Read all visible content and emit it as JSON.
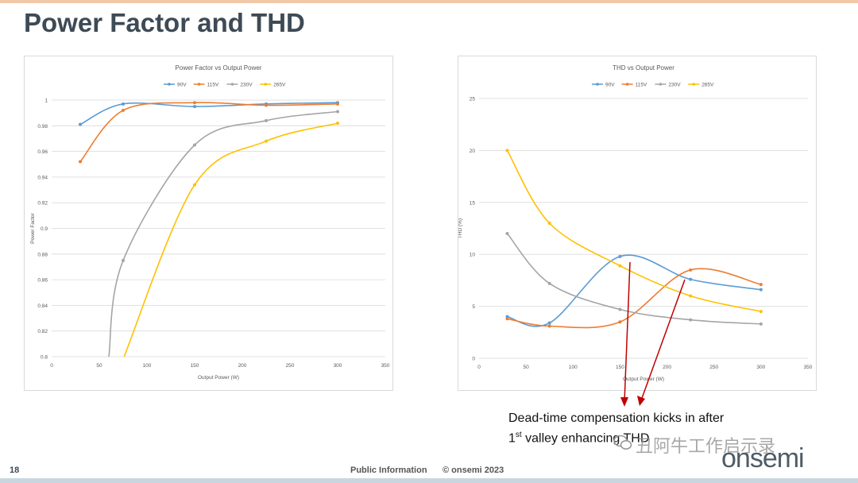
{
  "slide": {
    "title": "Power Factor and THD",
    "page_number": "18",
    "footer_info": "Public Information",
    "footer_copyright": "© onsemi 2023",
    "logo": "onsemi",
    "watermark": "丑阿牛工作启示录",
    "annotation_line1": "Dead-time compensation kicks in after",
    "annotation_line2_sup": "st",
    "annotation_line2_rest": " valley enhancing THD",
    "annotation_line2_prefix": "1",
    "colors": {
      "top_bar": "#f0c8a8",
      "bottom_bar": "#c9d6e0",
      "arrow": "#c00000",
      "title": "#3e4a55"
    }
  },
  "chart_data": [
    {
      "type": "line",
      "title": "Power Factor vs Output Power",
      "xlabel": "Output Power (W)",
      "ylabel": "Power Factor",
      "xlim": [
        0,
        350
      ],
      "ylim": [
        0.8,
        1
      ],
      "xticks": [
        "0",
        "50",
        "100",
        "150",
        "200",
        "250",
        "300",
        "350"
      ],
      "yticks": [
        "0.8",
        "0.82",
        "0.84",
        "0.86",
        "0.88",
        "0.9",
        "0.92",
        "0.94",
        "0.96",
        "0.98",
        "1"
      ],
      "legend_position": "top",
      "grid": true,
      "series": [
        {
          "name": "90V",
          "color": "#5b9bd5",
          "x": [
            30,
            75,
            150,
            225,
            300
          ],
          "y": [
            0.981,
            0.997,
            0.995,
            0.997,
            0.998
          ]
        },
        {
          "name": "115V",
          "color": "#ed7d31",
          "x": [
            30,
            75,
            150,
            225,
            300
          ],
          "y": [
            0.952,
            0.992,
            0.998,
            0.996,
            0.997
          ]
        },
        {
          "name": "230V",
          "color": "#a5a5a5",
          "x": [
            60,
            75,
            150,
            225,
            300
          ],
          "y": [
            0.8,
            0.875,
            0.965,
            0.984,
            0.991
          ]
        },
        {
          "name": "265V",
          "color": "#ffc000",
          "x": [
            76,
            150,
            225,
            300
          ],
          "y": [
            0.8,
            0.934,
            0.968,
            0.982
          ]
        }
      ]
    },
    {
      "type": "line",
      "title": "THD vs Output Power",
      "xlabel": "Output Power (W)",
      "ylabel": "THD (%)",
      "xlim": [
        0,
        350
      ],
      "ylim": [
        0,
        25
      ],
      "xticks": [
        "0",
        "50",
        "100",
        "150",
        "200",
        "250",
        "300",
        "350"
      ],
      "yticks": [
        "0",
        "5",
        "10",
        "15",
        "20",
        "25"
      ],
      "legend_position": "top",
      "grid": true,
      "series": [
        {
          "name": "90V",
          "color": "#5b9bd5",
          "x": [
            30,
            75,
            150,
            225,
            300
          ],
          "y": [
            4.0,
            3.4,
            9.8,
            7.6,
            6.6
          ]
        },
        {
          "name": "115V",
          "color": "#ed7d31",
          "x": [
            30,
            75,
            150,
            225,
            300
          ],
          "y": [
            3.8,
            3.1,
            3.5,
            8.5,
            7.1
          ]
        },
        {
          "name": "230V",
          "color": "#a5a5a5",
          "x": [
            30,
            75,
            150,
            225,
            300
          ],
          "y": [
            12.0,
            7.2,
            4.7,
            3.7,
            3.3
          ]
        },
        {
          "name": "265V",
          "color": "#ffc000",
          "x": [
            30,
            75,
            150,
            225,
            300
          ],
          "y": [
            20.0,
            13.0,
            8.9,
            6.0,
            4.5
          ]
        }
      ]
    }
  ]
}
